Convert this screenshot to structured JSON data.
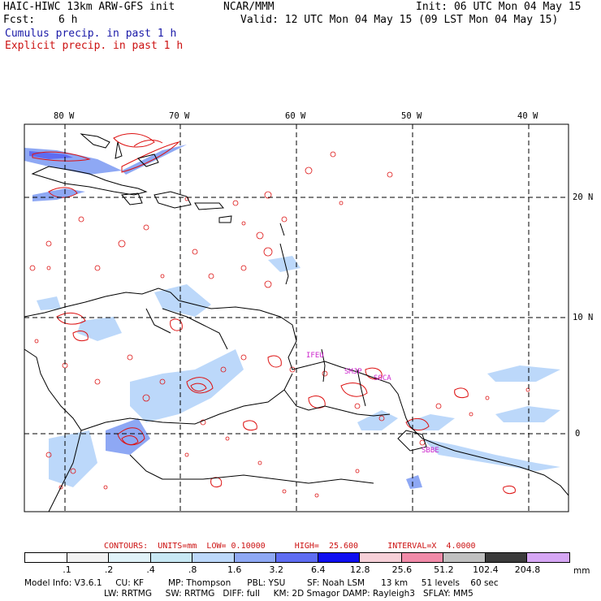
{
  "header": {
    "model": "HAIC-HIWC 13km ARW-GFS init",
    "org": "NCAR/MMM",
    "init": "Init: 06 UTC Mon 04 May 15",
    "fcst_label": "Fcst:",
    "fcst_value": "6 h",
    "valid": "Valid: 12 UTC Mon 04 May 15 (09 LST Mon 04 May 15)",
    "field1": "Cumulus precip. in past 1 h",
    "field2": "Explicit precip. in past 1 h"
  },
  "axes": {
    "lon_labels": [
      "80 W",
      "70 W",
      "60 W",
      "50 W",
      "40 W"
    ],
    "lat_labels": [
      "20 N",
      "10 N",
      "0"
    ]
  },
  "stations": [
    "IFEU",
    "SMJP",
    "SOCA",
    "SBBE"
  ],
  "contours": {
    "text": "CONTOURS:  UNITS=mm  LOW= 0.10000      HIGH=  25.600      INTERVAL=X  4.0000"
  },
  "colorbar": {
    "unit": "mm",
    "labels": [
      ".1",
      ".2",
      ".4",
      ".8",
      "1.6",
      "3.2",
      "6.4",
      "12.8",
      "25.6",
      "51.2",
      "102.4",
      "204.8"
    ],
    "colors": [
      "#ffffff",
      "#f2f2f2",
      "#e0f2f8",
      "#c8e8f4",
      "#bcd8fa",
      "#8ea8f4",
      "#5e6cf2",
      "#0e0ef0",
      "#f6d0d8",
      "#f08aa8",
      "#c0c0c0",
      "#3a3a3a",
      "#d6a6f4"
    ]
  },
  "model_info": {
    "line1": "Model Info: V3.6.1     CU: KF         MP: Thompson      PBL: YSU        SF: Noah LSM      13 km     51 levels    60 sec",
    "line2": "LW: RRTMG     SW: RRTMG   DIFF: full     KM: 2D Smagor DAMP: Rayleigh3   SFLAY: MM5"
  }
}
